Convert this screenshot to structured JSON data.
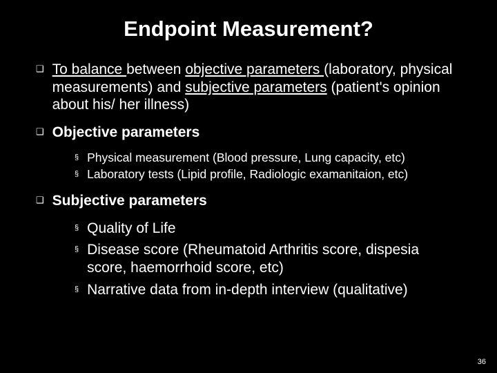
{
  "title": "Endpoint Measurement?",
  "bullets": [
    {
      "type": "paragraph",
      "runs": [
        {
          "t": "To balance ",
          "u": true
        },
        {
          "t": "between "
        },
        {
          "t": "objective parameters ",
          "u": true
        },
        {
          "t": "(laboratory, physical measurements) and "
        },
        {
          "t": "subjective parameters",
          "u": true
        },
        {
          "t": " (patient's opinion about his/ her illness)"
        }
      ]
    },
    {
      "type": "heading",
      "text": "Objective parameters",
      "sub_size": "small",
      "sub": [
        "Physical measurement (Blood pressure, Lung capacity, etc)",
        "Laboratory tests (Lipid profile, Radiologic examanitaion, etc)"
      ]
    },
    {
      "type": "heading",
      "text": "Subjective parameters",
      "sub_size": "large",
      "sub": [
        "Quality of Life",
        "Disease score (Rheumatoid Arthritis score, dispesia score, haemorrhoid score, etc)",
        "Narrative data from in-depth interview (qualitative)"
      ]
    }
  ],
  "page_number": "36",
  "markers": {
    "l1": "❑",
    "l2": "§"
  },
  "colors": {
    "bg": "#000000",
    "text": "#ffffff"
  }
}
